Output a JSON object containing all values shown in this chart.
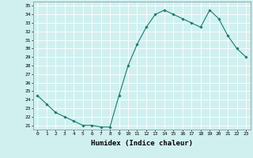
{
  "x": [
    0,
    1,
    2,
    3,
    4,
    5,
    6,
    7,
    8,
    9,
    10,
    11,
    12,
    13,
    14,
    15,
    16,
    17,
    18,
    19,
    20,
    21,
    22,
    23
  ],
  "y": [
    24.5,
    23.5,
    22.5,
    22.0,
    21.5,
    21.0,
    21.0,
    20.8,
    20.8,
    24.5,
    28.0,
    30.5,
    32.5,
    34.0,
    34.5,
    34.0,
    33.5,
    33.0,
    32.5,
    34.5,
    33.5,
    31.5,
    30.0,
    29.0
  ],
  "line_color": "#1a7a6e",
  "marker_color": "#1a7a6e",
  "bg_color": "#d0f0f0",
  "grid_color": "#ffffff",
  "xlabel": "Humidex (Indice chaleur)",
  "ylim_min": 20.5,
  "ylim_max": 35.5,
  "xlim_min": -0.5,
  "xlim_max": 23.5,
  "ytick_step": 1,
  "ytick_min": 21,
  "ytick_max": 35
}
